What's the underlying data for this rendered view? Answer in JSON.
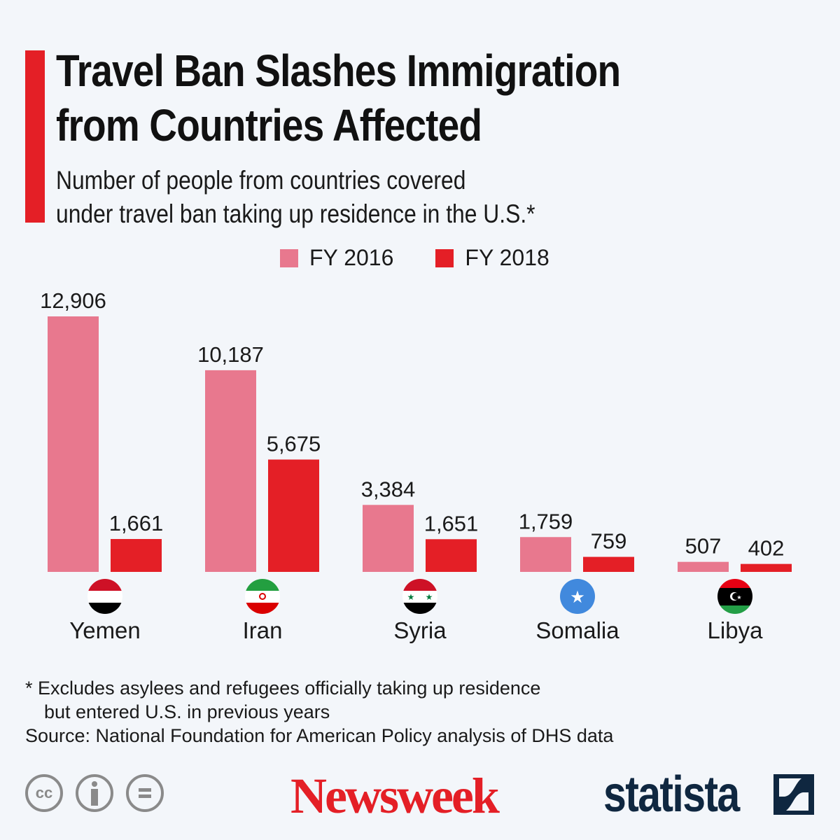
{
  "header": {
    "title_line1": "Travel Ban Slashes Immigration",
    "title_line2": "from Countries Affected",
    "subtitle_line1": "Number of people from countries covered",
    "subtitle_line2": "under travel ban taking up residence in the U.S.*"
  },
  "chart_data": {
    "type": "bar",
    "title": "Travel Ban Slashes Immigration from Countries Affected",
    "categories": [
      "Yemen",
      "Iran",
      "Syria",
      "Somalia",
      "Libya"
    ],
    "series": [
      {
        "name": "FY 2016",
        "color": "#e8788e",
        "values": [
          12906,
          10187,
          3384,
          1759,
          507
        ],
        "labels": [
          "12,906",
          "10,187",
          "3,384",
          "1,759",
          "507"
        ]
      },
      {
        "name": "FY 2018",
        "color": "#e41f26",
        "values": [
          1661,
          5675,
          1651,
          759,
          402
        ],
        "labels": [
          "1,661",
          "5,675",
          "1,651",
          "759",
          "402"
        ]
      }
    ],
    "ylim": [
      0,
      12906
    ],
    "grid": false,
    "legend": "top-center",
    "xlabel": "",
    "ylabel": ""
  },
  "notes": {
    "line1": "* Excludes asylees and refugees officially taking up residence",
    "line2": "but entered U.S. in previous years",
    "source": "Source: National Foundation for American Policy analysis of DHS data"
  },
  "footer": {
    "cc_label": "cc",
    "brand1": "Newsweek",
    "brand2": "statista"
  }
}
